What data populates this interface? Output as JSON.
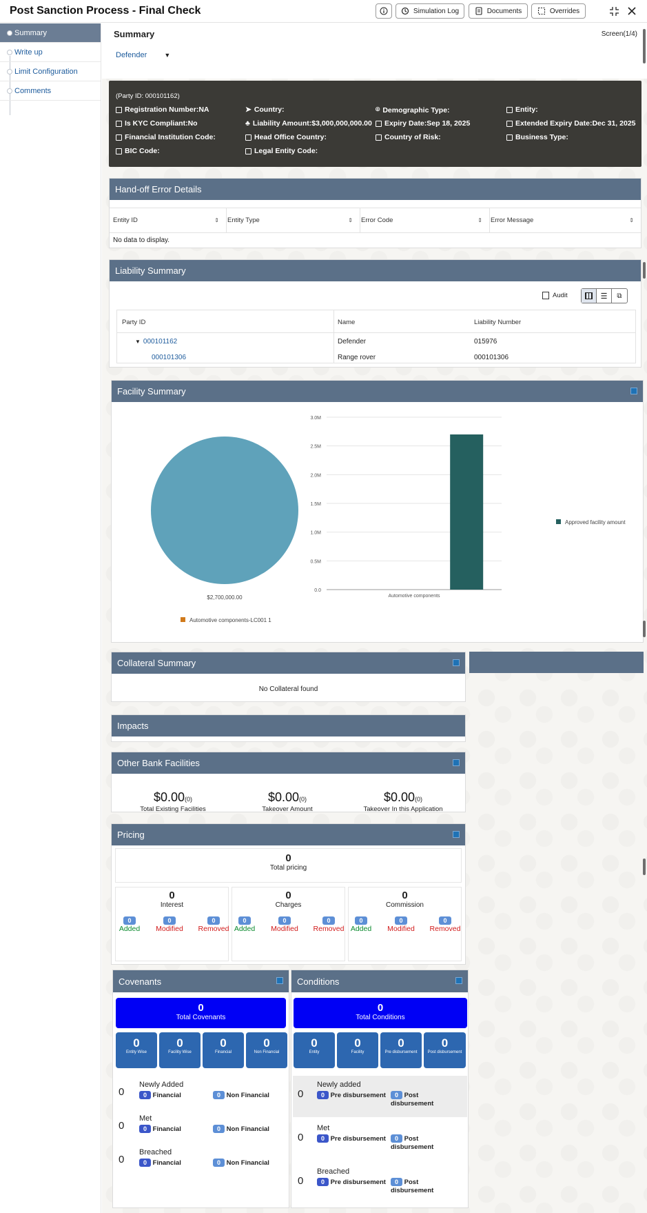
{
  "header": {
    "title": "Post Sanction Process - Final Check",
    "buttons": {
      "simulation_log": "Simulation Log",
      "documents": "Documents",
      "overrides": "Overrides"
    }
  },
  "nav": {
    "items": [
      {
        "label": "Summary"
      },
      {
        "label": "Write up"
      },
      {
        "label": "Limit Configuration"
      },
      {
        "label": "Comments"
      }
    ]
  },
  "summary": {
    "title": "Summary",
    "screen": "Screen(1/4)",
    "party_selector": "Defender"
  },
  "party_info": {
    "party_id": "(Party ID: 000101162)",
    "fields": {
      "registration": "Registration Number:NA",
      "country": "Country:",
      "demographic": "Demographic Type:",
      "entity": "Entity:",
      "kyc": "Is KYC Compliant:No",
      "liability_amount": "Liability Amount:$3,000,000,000.00",
      "expiry": "Expiry Date:Sep 18, 2025",
      "extended_expiry": "Extended Expiry Date:Dec 31, 2025",
      "fi_code": "Financial Institution Code:",
      "head_office": "Head Office Country:",
      "country_risk": "Country of Risk:",
      "business_type": "Business Type:",
      "bic": "BIC Code:",
      "legal_entity": "Legal Entity Code:"
    }
  },
  "handoff": {
    "title": "Hand-off Error Details",
    "columns": [
      "Entity ID",
      "Entity Type",
      "Error Code",
      "Error Message"
    ],
    "empty": "No data to display."
  },
  "liability": {
    "title": "Liability Summary",
    "audit": "Audit",
    "columns": [
      "Party ID",
      "Name",
      "Liability Number"
    ],
    "rows": [
      {
        "party_id": "000101162",
        "name": "Defender",
        "number": "015976"
      },
      {
        "party_id": "000101306",
        "name": "Range rover",
        "number": "000101306"
      }
    ]
  },
  "facility": {
    "title": "Facility Summary",
    "pie_value_label": "$2,700,000.00",
    "pie_legend": "Automotive components-LC001 1"
  },
  "chart_data": {
    "type": "bar",
    "categories": [
      "Automotive components"
    ],
    "series": [
      {
        "name": "Approved facility amount",
        "values": [
          2700000
        ],
        "color": "#25605f"
      }
    ],
    "yticks": [
      "0.0",
      "0.5M",
      "1.0M",
      "1.5M",
      "2.0M",
      "2.5M",
      "3.0M"
    ],
    "ylim": [
      0,
      3000000
    ]
  },
  "collateral": {
    "title": "Collateral Summary",
    "empty": "No Collateral found"
  },
  "impacts": {
    "title": "Impacts"
  },
  "other_bank": {
    "title": "Other Bank Facilities",
    "items": [
      {
        "value": "$0.00",
        "count": "(0)",
        "label": "Total Existing Facilities"
      },
      {
        "value": "$0.00",
        "count": "(0)",
        "label": "Takeover Amount"
      },
      {
        "value": "$0.00",
        "count": "(0)",
        "label": "Takeover In this Application"
      }
    ]
  },
  "pricing": {
    "title": "Pricing",
    "total": "0",
    "total_label": "Total pricing",
    "groups": [
      {
        "value": "0",
        "label": "Interest",
        "added": "0",
        "modified": "0",
        "removed": "0"
      },
      {
        "value": "0",
        "label": "Charges",
        "added": "0",
        "modified": "0",
        "removed": "0"
      },
      {
        "value": "0",
        "label": "Commission",
        "added": "0",
        "modified": "0",
        "removed": "0"
      }
    ],
    "added_label": "Added",
    "modified_label": "Modified",
    "removed_label": "Removed"
  },
  "covenants": {
    "title": "Covenants",
    "total": "0",
    "total_label": "Total Covenants",
    "tiles": [
      {
        "value": "0",
        "label": "Entity Wise"
      },
      {
        "value": "0",
        "label": "Facility Wise"
      },
      {
        "value": "0",
        "label": "Financial"
      },
      {
        "value": "0",
        "label": "Non Financial"
      }
    ],
    "rows": [
      {
        "count": "0",
        "label": "Newly Added",
        "fin": "0",
        "fin_label": "Financial",
        "nonfin": "0",
        "nonfin_label": "Non Financial"
      },
      {
        "count": "0",
        "label": "Met",
        "fin": "0",
        "fin_label": "Financial",
        "nonfin": "0",
        "nonfin_label": "Non Financial"
      },
      {
        "count": "0",
        "label": "Breached",
        "fin": "0",
        "fin_label": "Financial",
        "nonfin": "0",
        "nonfin_label": "Non Financial"
      }
    ]
  },
  "conditions": {
    "title": "Conditions",
    "total": "0",
    "total_label": "Total Conditions",
    "tiles": [
      {
        "value": "0",
        "label": "Entity"
      },
      {
        "value": "0",
        "label": "Facility"
      },
      {
        "value": "0",
        "label": "Pre disbursement"
      },
      {
        "value": "0",
        "label": "Post disbursement"
      }
    ],
    "rows": [
      {
        "count": "0",
        "label": "Newly added",
        "pre": "0",
        "pre_label": "Pre disbursement",
        "post": "0",
        "post_label": "Post disbursement"
      },
      {
        "count": "0",
        "label": "Met",
        "pre": "0",
        "pre_label": "Pre disbursement",
        "post": "0",
        "post_label": "Post disbursement"
      },
      {
        "count": "0",
        "label": "Breached",
        "pre": "0",
        "pre_label": "Pre disbursement",
        "post": "0",
        "post_label": "Post disbursement"
      }
    ]
  }
}
